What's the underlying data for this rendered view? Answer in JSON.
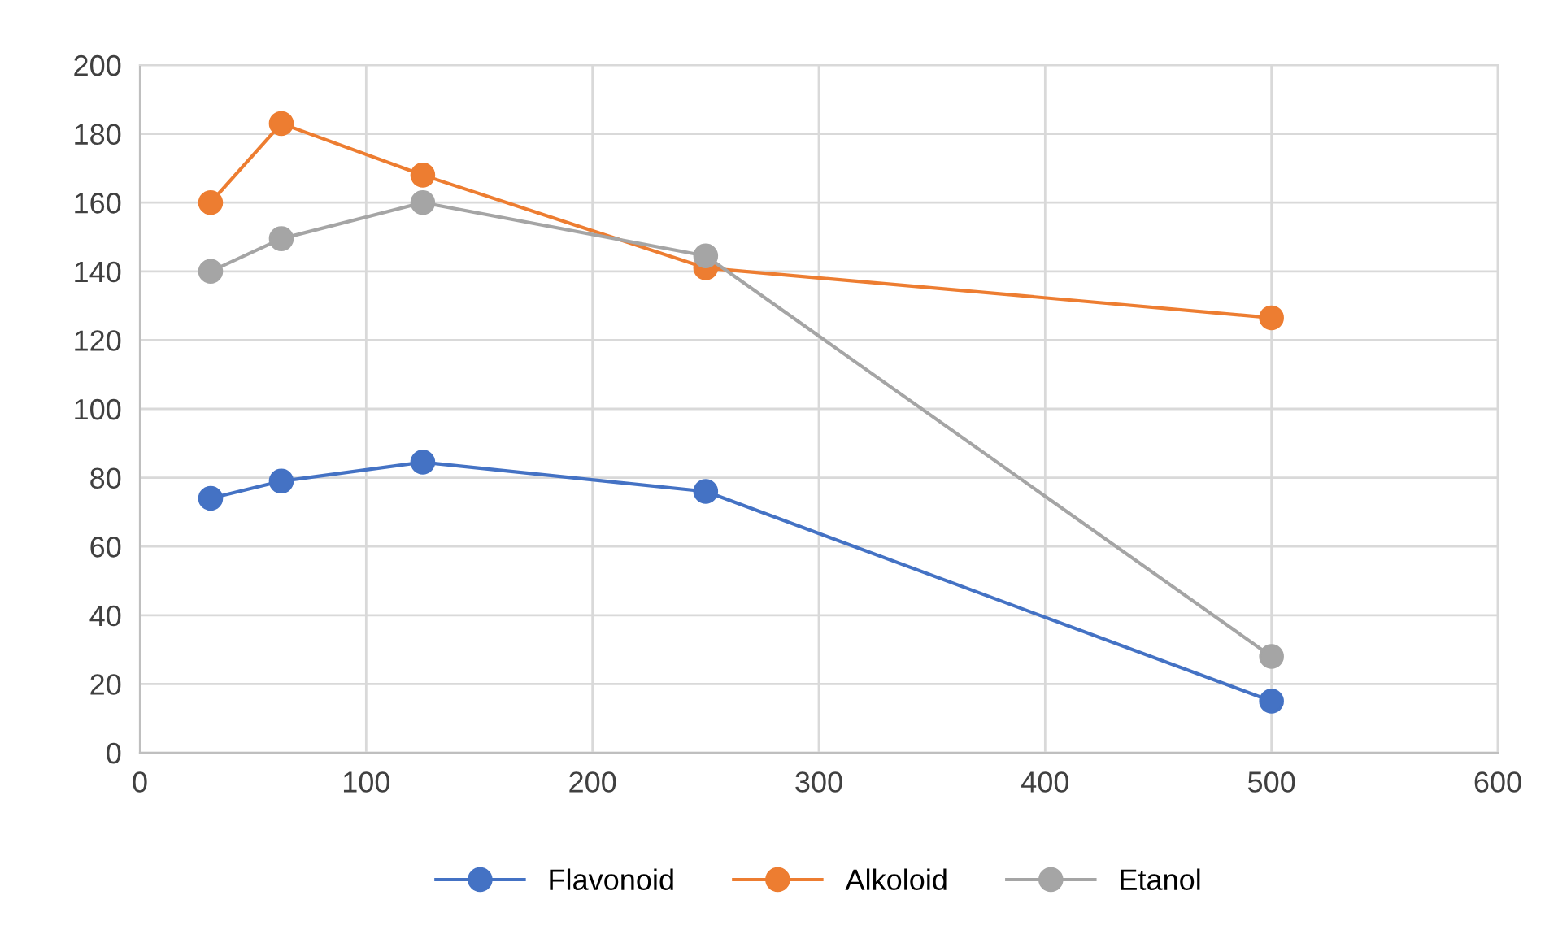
{
  "chart_data": {
    "type": "line",
    "x": [
      31.25,
      62.5,
      125,
      250,
      500
    ],
    "series": [
      {
        "name": "Flavonoid",
        "color": "#4472c4",
        "values": [
          74,
          79,
          84.5,
          76,
          15
        ]
      },
      {
        "name": "Alkoloid",
        "color": "#ed7d31",
        "values": [
          160,
          183,
          168,
          141,
          126.5
        ]
      },
      {
        "name": "Etanol",
        "color": "#a5a5a5",
        "values": [
          140,
          149.5,
          160,
          144.5,
          28
        ]
      }
    ],
    "xlim": [
      0,
      600
    ],
    "xticks": [
      0,
      100,
      200,
      300,
      400,
      500,
      600
    ],
    "ylim": [
      0,
      200
    ],
    "yticks": [
      0,
      20,
      40,
      60,
      80,
      100,
      120,
      140,
      160,
      180,
      200
    ],
    "grid": true,
    "legend": "bottom",
    "marker": "circle",
    "line_style": "solid"
  }
}
